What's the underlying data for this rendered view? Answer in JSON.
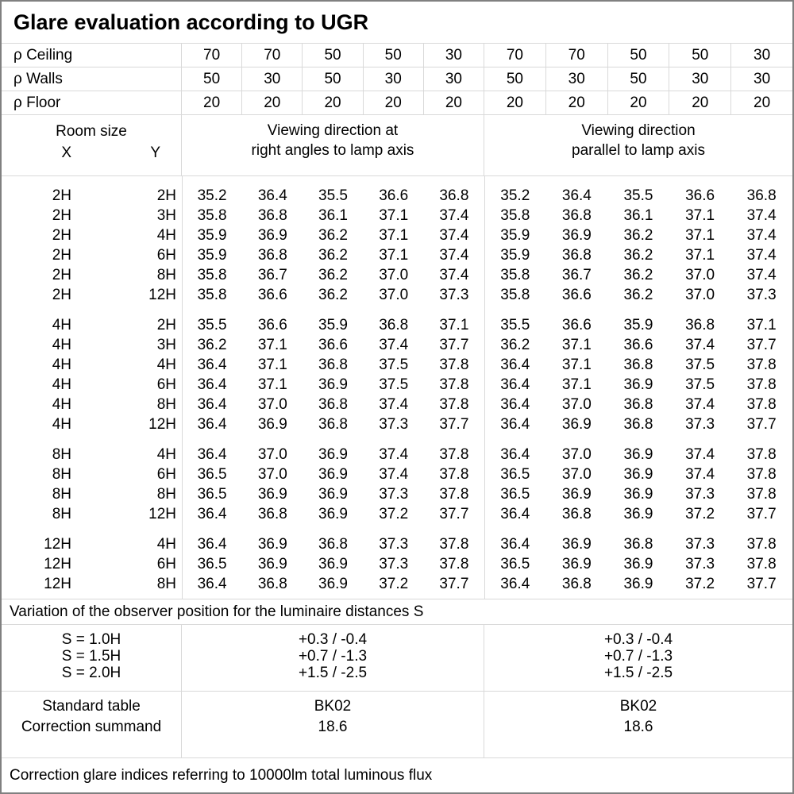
{
  "title": "Glare evaluation according to UGR",
  "colors": {
    "grid_line": "#d9d9d9",
    "outer_border": "#808080",
    "text": "#000000",
    "background": "#ffffff"
  },
  "reflectance_rows": [
    {
      "label": "ρ Ceiling",
      "values": [
        "70",
        "70",
        "50",
        "50",
        "30",
        "70",
        "70",
        "50",
        "50",
        "30"
      ]
    },
    {
      "label": "ρ Walls",
      "values": [
        "50",
        "30",
        "50",
        "30",
        "30",
        "50",
        "30",
        "50",
        "30",
        "30"
      ]
    },
    {
      "label": "ρ Floor",
      "values": [
        "20",
        "20",
        "20",
        "20",
        "20",
        "20",
        "20",
        "20",
        "20",
        "20"
      ]
    }
  ],
  "header": {
    "room_size_label": "Room size",
    "x_label": "X",
    "y_label": "Y",
    "left_title_line1": "Viewing direction at",
    "left_title_line2": "right angles to lamp axis",
    "right_title_line1": "Viewing direction",
    "right_title_line2": "parallel to lamp axis"
  },
  "ugr_blocks": [
    {
      "rows": [
        {
          "x": "2H",
          "y": "2H",
          "left": [
            "35.2",
            "36.4",
            "35.5",
            "36.6",
            "36.8"
          ],
          "right": [
            "35.2",
            "36.4",
            "35.5",
            "36.6",
            "36.8"
          ]
        },
        {
          "x": "2H",
          "y": "3H",
          "left": [
            "35.8",
            "36.8",
            "36.1",
            "37.1",
            "37.4"
          ],
          "right": [
            "35.8",
            "36.8",
            "36.1",
            "37.1",
            "37.4"
          ]
        },
        {
          "x": "2H",
          "y": "4H",
          "left": [
            "35.9",
            "36.9",
            "36.2",
            "37.1",
            "37.4"
          ],
          "right": [
            "35.9",
            "36.9",
            "36.2",
            "37.1",
            "37.4"
          ]
        },
        {
          "x": "2H",
          "y": "6H",
          "left": [
            "35.9",
            "36.8",
            "36.2",
            "37.1",
            "37.4"
          ],
          "right": [
            "35.9",
            "36.8",
            "36.2",
            "37.1",
            "37.4"
          ]
        },
        {
          "x": "2H",
          "y": "8H",
          "left": [
            "35.8",
            "36.7",
            "36.2",
            "37.0",
            "37.4"
          ],
          "right": [
            "35.8",
            "36.7",
            "36.2",
            "37.0",
            "37.4"
          ]
        },
        {
          "x": "2H",
          "y": "12H",
          "left": [
            "35.8",
            "36.6",
            "36.2",
            "37.0",
            "37.3"
          ],
          "right": [
            "35.8",
            "36.6",
            "36.2",
            "37.0",
            "37.3"
          ]
        }
      ]
    },
    {
      "rows": [
        {
          "x": "4H",
          "y": "2H",
          "left": [
            "35.5",
            "36.6",
            "35.9",
            "36.8",
            "37.1"
          ],
          "right": [
            "35.5",
            "36.6",
            "35.9",
            "36.8",
            "37.1"
          ]
        },
        {
          "x": "4H",
          "y": "3H",
          "left": [
            "36.2",
            "37.1",
            "36.6",
            "37.4",
            "37.7"
          ],
          "right": [
            "36.2",
            "37.1",
            "36.6",
            "37.4",
            "37.7"
          ]
        },
        {
          "x": "4H",
          "y": "4H",
          "left": [
            "36.4",
            "37.1",
            "36.8",
            "37.5",
            "37.8"
          ],
          "right": [
            "36.4",
            "37.1",
            "36.8",
            "37.5",
            "37.8"
          ]
        },
        {
          "x": "4H",
          "y": "6H",
          "left": [
            "36.4",
            "37.1",
            "36.9",
            "37.5",
            "37.8"
          ],
          "right": [
            "36.4",
            "37.1",
            "36.9",
            "37.5",
            "37.8"
          ]
        },
        {
          "x": "4H",
          "y": "8H",
          "left": [
            "36.4",
            "37.0",
            "36.8",
            "37.4",
            "37.8"
          ],
          "right": [
            "36.4",
            "37.0",
            "36.8",
            "37.4",
            "37.8"
          ]
        },
        {
          "x": "4H",
          "y": "12H",
          "left": [
            "36.4",
            "36.9",
            "36.8",
            "37.3",
            "37.7"
          ],
          "right": [
            "36.4",
            "36.9",
            "36.8",
            "37.3",
            "37.7"
          ]
        }
      ]
    },
    {
      "rows": [
        {
          "x": "8H",
          "y": "4H",
          "left": [
            "36.4",
            "37.0",
            "36.9",
            "37.4",
            "37.8"
          ],
          "right": [
            "36.4",
            "37.0",
            "36.9",
            "37.4",
            "37.8"
          ]
        },
        {
          "x": "8H",
          "y": "6H",
          "left": [
            "36.5",
            "37.0",
            "36.9",
            "37.4",
            "37.8"
          ],
          "right": [
            "36.5",
            "37.0",
            "36.9",
            "37.4",
            "37.8"
          ]
        },
        {
          "x": "8H",
          "y": "8H",
          "left": [
            "36.5",
            "36.9",
            "36.9",
            "37.3",
            "37.8"
          ],
          "right": [
            "36.5",
            "36.9",
            "36.9",
            "37.3",
            "37.8"
          ]
        },
        {
          "x": "8H",
          "y": "12H",
          "left": [
            "36.4",
            "36.8",
            "36.9",
            "37.2",
            "37.7"
          ],
          "right": [
            "36.4",
            "36.8",
            "36.9",
            "37.2",
            "37.7"
          ]
        }
      ]
    },
    {
      "rows": [
        {
          "x": "12H",
          "y": "4H",
          "left": [
            "36.4",
            "36.9",
            "36.8",
            "37.3",
            "37.8"
          ],
          "right": [
            "36.4",
            "36.9",
            "36.8",
            "37.3",
            "37.8"
          ]
        },
        {
          "x": "12H",
          "y": "6H",
          "left": [
            "36.5",
            "36.9",
            "36.9",
            "37.3",
            "37.8"
          ],
          "right": [
            "36.5",
            "36.9",
            "36.9",
            "37.3",
            "37.8"
          ]
        },
        {
          "x": "12H",
          "y": "8H",
          "left": [
            "36.4",
            "36.8",
            "36.9",
            "37.2",
            "37.7"
          ],
          "right": [
            "36.4",
            "36.8",
            "36.9",
            "37.2",
            "37.7"
          ]
        }
      ]
    }
  ],
  "variation_note": "Variation of the observer position for the luminaire distances S",
  "observer_variation": {
    "s_labels": [
      "S = 1.0H",
      "S = 1.5H",
      "S = 2.0H"
    ],
    "left_values": [
      "+0.3 / -0.4",
      "+0.7 / -1.3",
      "+1.5 / -2.5"
    ],
    "right_values": [
      "+0.3 / -0.4",
      "+0.7 / -1.3",
      "+1.5 / -2.5"
    ]
  },
  "summary": {
    "row_labels": [
      "Standard table",
      "Correction summand"
    ],
    "left_values": [
      "BK02",
      "18.6"
    ],
    "right_values": [
      "BK02",
      "18.6"
    ]
  },
  "footer_note": "Correction glare indices referring to 10000lm total luminous flux"
}
